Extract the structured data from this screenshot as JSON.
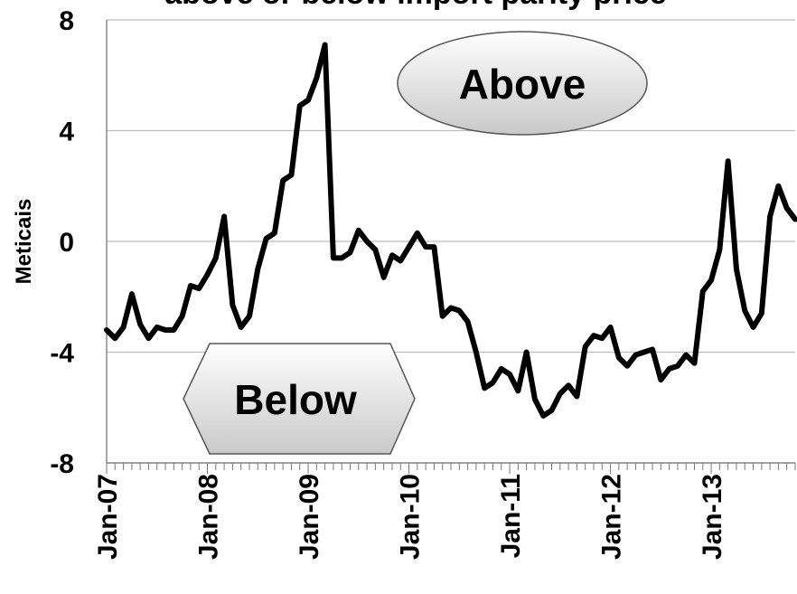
{
  "chart_data": {
    "type": "line",
    "title": "above or below import parity price",
    "ylabel": "Meticais",
    "xlabel": "",
    "ylim": [
      -8,
      8
    ],
    "yticks": [
      8,
      4,
      0,
      -4,
      -8
    ],
    "ytick_labels": [
      "8",
      "4",
      "0",
      "-4",
      "-8"
    ],
    "xtick_labels": [
      "Jan-07",
      "Jan-08",
      "Jan-09",
      "Jan-10",
      "Jan-11",
      "Jan-12",
      "Jan-13"
    ],
    "grid": true,
    "x_start": "Jan-07",
    "x_interval": "month",
    "annotations": [
      {
        "text": "Above",
        "shape": "ellipse"
      },
      {
        "text": "Below",
        "shape": "hexagon"
      }
    ],
    "series": [
      {
        "color": "#000000",
        "values": [
          -3.2,
          -3.5,
          -3.1,
          -1.9,
          -3.0,
          -3.5,
          -3.1,
          -3.2,
          -3.2,
          -2.7,
          -1.6,
          -1.7,
          -1.2,
          -0.6,
          0.9,
          -2.3,
          -3.1,
          -2.7,
          -1.0,
          0.1,
          0.3,
          2.2,
          2.4,
          4.9,
          5.1,
          5.9,
          7.1,
          -0.6,
          -0.6,
          -0.4,
          0.4,
          0.0,
          -0.3,
          -1.3,
          -0.5,
          -0.7,
          -0.2,
          0.3,
          -0.2,
          -0.2,
          -2.7,
          -2.4,
          -2.5,
          -2.9,
          -4.0,
          -5.3,
          -5.1,
          -4.6,
          -4.8,
          -5.4,
          -4.0,
          -5.7,
          -6.3,
          -6.1,
          -5.5,
          -5.2,
          -5.6,
          -3.8,
          -3.4,
          -3.5,
          -3.1,
          -4.2,
          -4.5,
          -4.1,
          -4.0,
          -3.9,
          -5.0,
          -4.6,
          -4.5,
          -4.1,
          -4.4,
          -1.8,
          -1.4,
          -0.3,
          2.9,
          -1.0,
          -2.5,
          -3.1,
          -2.6,
          0.9,
          2.0,
          1.2,
          0.8
        ]
      }
    ]
  }
}
